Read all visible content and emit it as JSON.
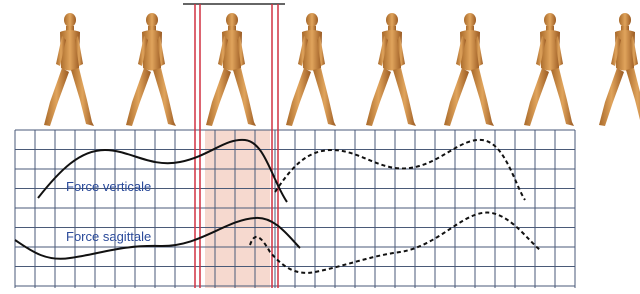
{
  "labels": {
    "vertical": "Force verticale",
    "sagittal": "Force sagittale"
  }
}
